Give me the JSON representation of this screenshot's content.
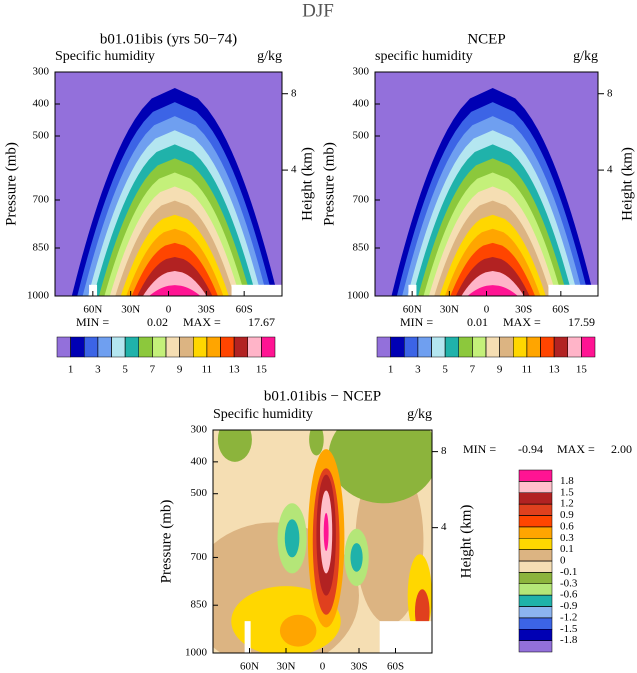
{
  "title": "DJF",
  "chart_data": [
    {
      "type": "contour",
      "title": "b01.01ibis (yrs 50−74)",
      "subtitle": "Specific humidity",
      "units": "g/kg",
      "ylabel": "Pressure (mb)",
      "y2label": "Height (km)",
      "ylim": [
        1000,
        300
      ],
      "yticks": [
        300,
        400,
        500,
        700,
        850,
        1000
      ],
      "y2ticks": [
        4,
        8
      ],
      "xlim": [
        90,
        -90
      ],
      "xticks": [
        {
          "value": 60,
          "label": "60N"
        },
        {
          "value": 30,
          "label": "30N"
        },
        0,
        {
          "value": -30,
          "label": "30S"
        },
        {
          "value": -60,
          "label": "60S"
        }
      ],
      "min_label": "MIN =",
      "min": 0.02,
      "max_label": "MAX =",
      "max": 17.67,
      "levels": [
        1,
        2,
        3,
        4,
        5,
        6,
        7,
        8,
        9,
        10,
        11,
        12,
        13,
        14,
        15
      ],
      "colorbar_ticks": [
        1,
        3,
        5,
        7,
        9,
        11,
        13,
        15
      ],
      "colorbar": "horizontal",
      "colors": [
        "#9370db",
        "#0000b4",
        "#3c64e6",
        "#6f9ff0",
        "#b4e6f0",
        "#20b2aa",
        "#8cc83c",
        "#c4f07a",
        "#f5deb3",
        "#dcb482",
        "#ffd700",
        "#ffa500",
        "#ff4500",
        "#b22222",
        "#ffb4c8",
        "#ff1493"
      ]
    },
    {
      "type": "contour",
      "title": "NCEP",
      "subtitle": "specific humidity",
      "units": "g/kg",
      "ylabel": "Pressure (mb)",
      "y2label": "Height (km)",
      "ylim": [
        1000,
        300
      ],
      "yticks": [
        300,
        400,
        500,
        700,
        850,
        1000
      ],
      "y2ticks": [
        4,
        8
      ],
      "xlim": [
        90,
        -90
      ],
      "xticks": [
        {
          "value": 60,
          "label": "60N"
        },
        {
          "value": 30,
          "label": "30N"
        },
        0,
        {
          "value": -30,
          "label": "30S"
        },
        {
          "value": -60,
          "label": "60S"
        }
      ],
      "min_label": "MIN =",
      "min": 0.01,
      "max_label": "MAX =",
      "max": 17.59,
      "levels": [
        1,
        2,
        3,
        4,
        5,
        6,
        7,
        8,
        9,
        10,
        11,
        12,
        13,
        14,
        15
      ],
      "colorbar_ticks": [
        1,
        3,
        5,
        7,
        9,
        11,
        13,
        15
      ],
      "colorbar": "horizontal",
      "colors": [
        "#9370db",
        "#0000b4",
        "#3c64e6",
        "#6f9ff0",
        "#b4e6f0",
        "#20b2aa",
        "#8cc83c",
        "#c4f07a",
        "#f5deb3",
        "#dcb482",
        "#ffd700",
        "#ffa500",
        "#ff4500",
        "#b22222",
        "#ffb4c8",
        "#ff1493"
      ]
    },
    {
      "type": "contour",
      "title": "b01.01ibis − NCEP",
      "subtitle": "Specific humidity",
      "units": "g/kg",
      "ylabel": "Pressure (mb)",
      "y2label": "Height (km)",
      "ylim": [
        1000,
        300
      ],
      "yticks": [
        300,
        400,
        500,
        700,
        850,
        1000
      ],
      "y2ticks": [
        4,
        8
      ],
      "xlim": [
        90,
        -90
      ],
      "xticks": [
        {
          "value": 60,
          "label": "60N"
        },
        {
          "value": 30,
          "label": "30N"
        },
        0,
        {
          "value": -30,
          "label": "30S"
        },
        {
          "value": -60,
          "label": "60S"
        }
      ],
      "min_label": "MIN =",
      "min": -0.94,
      "max_label": "MAX =",
      "max": {
        "value": 2,
        "label": "2.00"
      },
      "levels": [
        -1.8,
        -1.5,
        -1.2,
        -0.9,
        -0.6,
        -0.3,
        -0.1,
        0,
        0.1,
        0.3,
        0.6,
        0.9,
        1.2,
        1.5,
        1.8
      ],
      "colorbar_ticks": [
        -1.8,
        -1.5,
        -1.2,
        -0.9,
        -0.6,
        -0.3,
        -0.1,
        0,
        0.1,
        0.3,
        0.6,
        0.9,
        1.2,
        1.5,
        1.8
      ],
      "colorbar": "vertical",
      "colors": [
        "#9370db",
        "#0000b4",
        "#3c64e6",
        "#8cb4f0",
        "#20b2aa",
        "#b4e678",
        "#8cb43c",
        "#f5deb3",
        "#dcb482",
        "#ffd700",
        "#ffa500",
        "#ff4500",
        "#e0401e",
        "#b22222",
        "#ffc0cb",
        "#ff1493"
      ]
    }
  ]
}
